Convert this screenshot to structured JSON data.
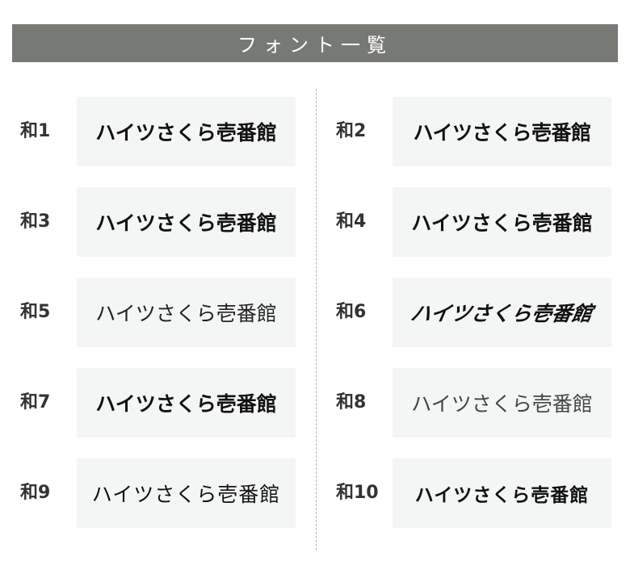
{
  "header": {
    "title": "フォント一覧"
  },
  "colors": {
    "header_bg": "#777a74",
    "box_bg": "#f4f6f6",
    "text": "#111111"
  },
  "sample_text": "ハイツさくら壱番館",
  "fonts": [
    {
      "label": "和1",
      "sample": "ハイツさくら壱番館"
    },
    {
      "label": "和2",
      "sample": "ハイツさくら壱番館"
    },
    {
      "label": "和3",
      "sample": "ハイツさくら壱番館"
    },
    {
      "label": "和4",
      "sample": "ハイツさくら壱番館"
    },
    {
      "label": "和5",
      "sample": "ハイツさくら壱番館"
    },
    {
      "label": "和6",
      "sample": "ハイツさくら壱番館"
    },
    {
      "label": "和7",
      "sample": "ハイツさくら壱番館"
    },
    {
      "label": "和8",
      "sample": "ハイツさくら壱番館"
    },
    {
      "label": "和9",
      "sample": "ハイツさくら壱番館"
    },
    {
      "label": "和10",
      "sample": "ハイツさくら壱番館"
    }
  ]
}
